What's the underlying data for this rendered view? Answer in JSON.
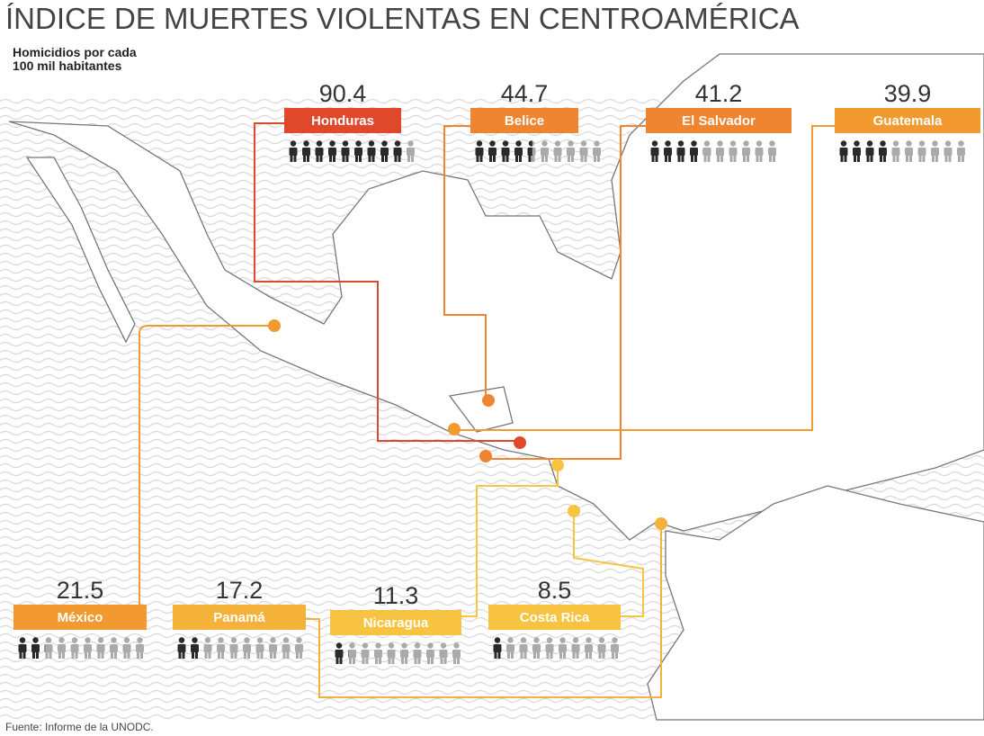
{
  "chart_data": {
    "type": "pictogram",
    "title": "ÍNDICE DE MUERTES VIOLENTAS EN CENTROAMÉRICA",
    "subtitle": [
      "Homicidios por cada",
      "100 mil habitantes"
    ],
    "source": "Fuente: Informe de la UNODC.",
    "categories": [
      "Honduras",
      "Belice",
      "El Salvador",
      "Guatemala",
      "México",
      "Panamá",
      "Nicaragua",
      "Costa Rica"
    ],
    "values": [
      90.4,
      44.7,
      41.2,
      39.9,
      21.5,
      17.2,
      11.3,
      8.5
    ],
    "colors": [
      "#e0482c",
      "#ef8530",
      "#ef8530",
      "#f29a30",
      "#f29a30",
      "#f5b23a",
      "#f7c340",
      "#f7c340"
    ],
    "xlim": [
      0,
      100
    ]
  }
}
